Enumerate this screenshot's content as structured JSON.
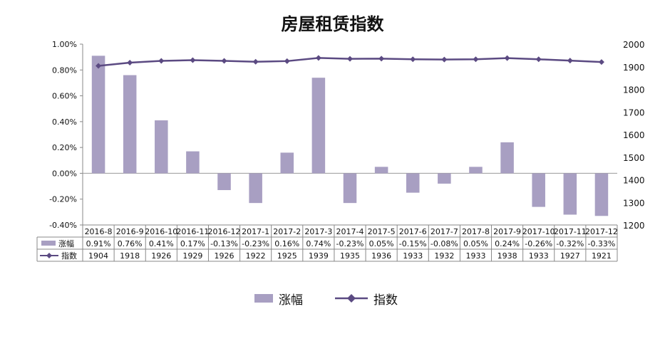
{
  "chart_data": {
    "type": "bar+line",
    "title": "房屋租赁指数",
    "categories": [
      "2016-8",
      "2016-9",
      "2016-10",
      "2016-11",
      "2016-12",
      "2017-1",
      "2017-2",
      "2017-3",
      "2017-4",
      "2017-5",
      "2017-6",
      "2017-7",
      "2017-8",
      "2017-9",
      "2017-10",
      "2017-11",
      "2017-12"
    ],
    "series": [
      {
        "name": "涨幅",
        "type": "bar",
        "axis": "left",
        "color": "#a89fc2",
        "values": [
          0.91,
          0.76,
          0.41,
          0.17,
          -0.13,
          -0.23,
          0.16,
          0.74,
          -0.23,
          0.05,
          -0.15,
          -0.08,
          0.05,
          0.24,
          -0.26,
          -0.32,
          -0.33
        ],
        "labels": [
          "0.91%",
          "0.76%",
          "0.41%",
          "0.17%",
          "-0.13%",
          "-0.23%",
          "0.16%",
          "0.74%",
          "-0.23%",
          "0.05%",
          "-0.15%",
          "-0.08%",
          "0.05%",
          "0.24%",
          "-0.26%",
          "-0.32%",
          "-0.33%"
        ]
      },
      {
        "name": "指数",
        "type": "line",
        "axis": "right",
        "color": "#5b4a82",
        "values": [
          1904,
          1918,
          1926,
          1929,
          1926,
          1922,
          1925,
          1939,
          1935,
          1936,
          1933,
          1932,
          1933,
          1938,
          1933,
          1927,
          1921
        ],
        "labels": [
          "1904",
          "1918",
          "1926",
          "1929",
          "1926",
          "1922",
          "1925",
          "1939",
          "1935",
          "1936",
          "1933",
          "1932",
          "1933",
          "1938",
          "1933",
          "1927",
          "1921"
        ]
      }
    ],
    "y_left": {
      "min": -0.4,
      "max": 1.0,
      "step": 0.2,
      "tick_labels": [
        "-0.40%",
        "-0.20%",
        "0.00%",
        "0.20%",
        "0.40%",
        "0.60%",
        "0.80%",
        "1.00%"
      ]
    },
    "y_right": {
      "min": 1200,
      "max": 2000,
      "step": 100,
      "tick_labels": [
        "1200",
        "1300",
        "1400",
        "1500",
        "1600",
        "1700",
        "1800",
        "1900",
        "2000"
      ]
    },
    "data_table": true,
    "legend_position": "bottom",
    "grid": false
  }
}
